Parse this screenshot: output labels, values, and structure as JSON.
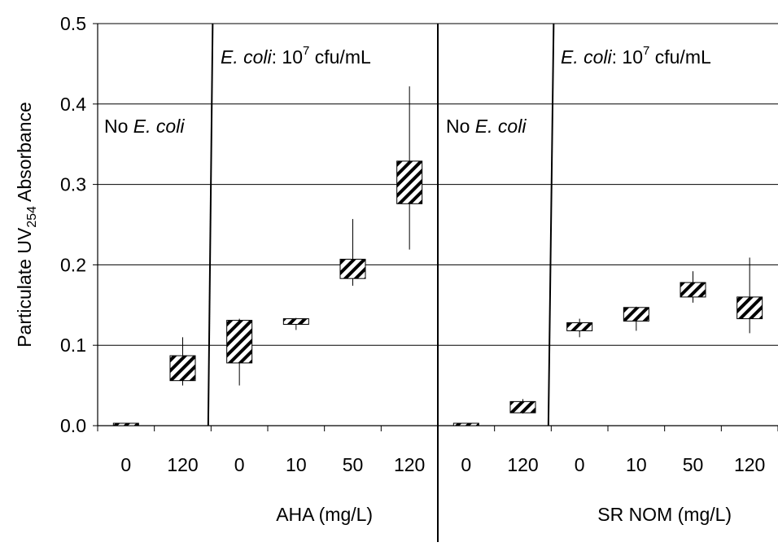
{
  "chart_data": {
    "type": "box",
    "ylabel": {
      "main": "Particulate UV",
      "sub": "254",
      "tail": " Absorbance"
    },
    "ylim": [
      0,
      0.5
    ],
    "yticks": [
      "0.0",
      "0.1",
      "0.2",
      "0.3",
      "0.4",
      "0.5"
    ],
    "grid": true,
    "groups": [
      {
        "label": "AHA (mg/L)",
        "categories": [
          "0",
          "120",
          "0",
          "10",
          "50",
          "120"
        ]
      },
      {
        "label": "SR NOM (mg/L)",
        "categories": [
          "0",
          "120",
          "0",
          "10",
          "50",
          "120"
        ]
      }
    ],
    "annotations": [
      {
        "id": "aha_no",
        "parts": [
          "No ",
          "E. coli"
        ]
      },
      {
        "id": "aha_ecoli",
        "parts": [
          "E. coli",
          ": 10",
          "7",
          " cfu/mL"
        ]
      },
      {
        "id": "sr_no",
        "parts": [
          "No ",
          "E. coli"
        ]
      },
      {
        "id": "sr_ecoli",
        "parts": [
          "E. coli",
          ": 10",
          "7",
          " cfu/mL"
        ]
      }
    ],
    "series": [
      {
        "group": "AHA",
        "condition": "No E. coli",
        "x": "0",
        "whisker_low": 0.0,
        "box_low": 0.0,
        "box_high": 0.003,
        "whisker_high": 0.003
      },
      {
        "group": "AHA",
        "condition": "No E. coli",
        "x": "120",
        "whisker_low": 0.05,
        "box_low": 0.056,
        "box_high": 0.087,
        "whisker_high": 0.11
      },
      {
        "group": "AHA",
        "condition": "E. coli",
        "x": "0",
        "whisker_low": 0.05,
        "box_low": 0.078,
        "box_high": 0.131,
        "whisker_high": 0.133
      },
      {
        "group": "AHA",
        "condition": "E. coli",
        "x": "10",
        "whisker_low": 0.119,
        "box_low": 0.126,
        "box_high": 0.133,
        "whisker_high": 0.134
      },
      {
        "group": "AHA",
        "condition": "E. coli",
        "x": "50",
        "whisker_low": 0.174,
        "box_low": 0.183,
        "box_high": 0.207,
        "whisker_high": 0.257
      },
      {
        "group": "AHA",
        "condition": "E. coli",
        "x": "120",
        "whisker_low": 0.219,
        "box_low": 0.276,
        "box_high": 0.329,
        "whisker_high": 0.422
      },
      {
        "group": "SR NOM",
        "condition": "No E. coli",
        "x": "0",
        "whisker_low": 0.0,
        "box_low": 0.0,
        "box_high": 0.003,
        "whisker_high": 0.003
      },
      {
        "group": "SR NOM",
        "condition": "No E. coli",
        "x": "120",
        "whisker_low": 0.015,
        "box_low": 0.016,
        "box_high": 0.03,
        "whisker_high": 0.033
      },
      {
        "group": "SR NOM",
        "condition": "E. coli",
        "x": "0",
        "whisker_low": 0.11,
        "box_low": 0.118,
        "box_high": 0.128,
        "whisker_high": 0.133
      },
      {
        "group": "SR NOM",
        "condition": "E. coli",
        "x": "10",
        "whisker_low": 0.118,
        "box_low": 0.13,
        "box_high": 0.147,
        "whisker_high": 0.148
      },
      {
        "group": "SR NOM",
        "condition": "E. coli",
        "x": "50",
        "whisker_low": 0.153,
        "box_low": 0.16,
        "box_high": 0.178,
        "whisker_high": 0.192
      },
      {
        "group": "SR NOM",
        "condition": "E. coli",
        "x": "120",
        "whisker_low": 0.115,
        "box_low": 0.133,
        "box_high": 0.16,
        "whisker_high": 0.209
      }
    ]
  }
}
